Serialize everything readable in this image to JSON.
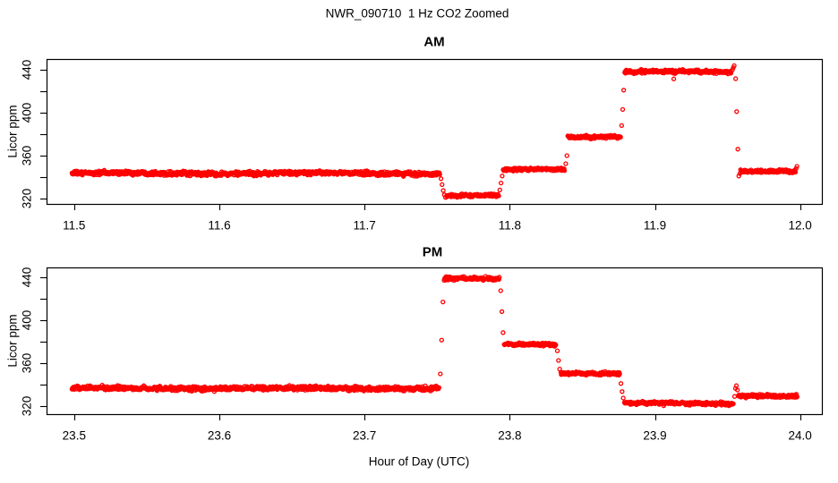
{
  "title": "NWR_090710  1 Hz CO2 Zoomed",
  "xlabel": "Hour of Day (UTC)",
  "point_color": "#FF0000",
  "axis_color": "#000000",
  "chart_data": [
    {
      "type": "scatter",
      "title": "AM",
      "ylabel": "Licor ppm",
      "marker": "open-circle",
      "grid": false,
      "legend": "none",
      "x_ticks": [
        11.5,
        11.6,
        11.7,
        11.8,
        11.9,
        12.0
      ],
      "x_tick_labels": [
        "11.5",
        "11.6",
        "11.7",
        "11.8",
        "11.9",
        "12.0"
      ],
      "y_major_ticks": [
        320,
        360,
        400,
        440
      ],
      "y_major_tick_labels": [
        "320",
        "360",
        "400",
        "440"
      ],
      "y_minor_ticks": [
        340,
        380,
        420
      ],
      "xlim": [
        11.481,
        12.015
      ],
      "ylim": [
        315,
        450
      ],
      "sample_interval_hours": 0.000277778,
      "segments": [
        {
          "x0": 11.4985,
          "x1": 11.752,
          "level": 343.5,
          "noise": 2.0
        },
        {
          "x0": 11.7566,
          "x1": 11.7925,
          "level": 322.5,
          "noise": 1.5
        },
        {
          "x0": 11.7955,
          "x1": 11.838,
          "level": 347.0,
          "noise": 1.5
        },
        {
          "x0": 11.84,
          "x1": 11.8765,
          "level": 377.0,
          "noise": 1.5
        },
        {
          "x0": 11.8792,
          "x1": 11.9528,
          "level": 438.0,
          "noise": 1.6
        },
        {
          "x0": 11.959,
          "x1": 11.9968,
          "level": 345.0,
          "noise": 1.6
        }
      ],
      "transition_points": [
        [
          11.7527,
          338.5
        ],
        [
          11.7534,
          333.0
        ],
        [
          11.7542,
          327.5
        ],
        [
          11.755,
          323.5
        ],
        [
          11.7558,
          321.0
        ],
        [
          11.7932,
          328.0
        ],
        [
          11.794,
          334.5
        ],
        [
          11.7948,
          341.0
        ],
        [
          11.8386,
          352.5
        ],
        [
          11.8394,
          360.0
        ],
        [
          11.8771,
          388.0
        ],
        [
          11.8778,
          403.0
        ],
        [
          11.8785,
          421.0
        ],
        [
          11.913,
          431.5
        ],
        [
          11.9534,
          440.0
        ],
        [
          11.954,
          442.0
        ],
        [
          11.9546,
          443.8
        ],
        [
          11.9556,
          431.7
        ],
        [
          11.9563,
          401.0
        ],
        [
          11.9571,
          366.0
        ],
        [
          11.9578,
          341.0
        ],
        [
          11.9585,
          343.2
        ],
        [
          11.9973,
          348.0
        ],
        [
          11.9978,
          350.0
        ]
      ]
    },
    {
      "type": "scatter",
      "title": "PM",
      "ylabel": "Licor ppm",
      "marker": "open-circle",
      "grid": false,
      "legend": "none",
      "x_ticks": [
        23.5,
        23.6,
        23.7,
        23.8,
        23.9,
        24.0
      ],
      "x_tick_labels": [
        "23.5",
        "23.6",
        "23.7",
        "23.8",
        "23.9",
        "24.0"
      ],
      "y_major_ticks": [
        320,
        360,
        400,
        440
      ],
      "y_major_tick_labels": [
        "320",
        "360",
        "400",
        "440"
      ],
      "y_minor_ticks": [
        340,
        380,
        420
      ],
      "xlim": [
        23.481,
        24.015
      ],
      "ylim": [
        312.5,
        449.2
      ],
      "sample_interval_hours": 0.000277778,
      "segments": [
        {
          "x0": 23.4985,
          "x1": 23.7515,
          "level": 336.5,
          "noise": 2.0
        },
        {
          "x0": 23.7548,
          "x1": 23.793,
          "level": 438.5,
          "noise": 1.6
        },
        {
          "x0": 23.7962,
          "x1": 23.832,
          "level": 377.0,
          "noise": 1.5
        },
        {
          "x0": 23.8352,
          "x1": 23.8758,
          "level": 350.0,
          "noise": 1.5
        },
        {
          "x0": 23.879,
          "x1": 23.9542,
          "level": 322.5,
          "noise": 1.5
        },
        {
          "x0": 23.9574,
          "x1": 23.998,
          "level": 329.0,
          "noise": 1.5
        }
      ],
      "transition_points": [
        [
          23.7522,
          350.0
        ],
        [
          23.7531,
          381.5
        ],
        [
          23.754,
          417.0
        ],
        [
          23.7938,
          427.5
        ],
        [
          23.7946,
          408.0
        ],
        [
          23.7954,
          388.5
        ],
        [
          23.8328,
          371.5
        ],
        [
          23.8336,
          362.5
        ],
        [
          23.8344,
          354.5
        ],
        [
          23.8766,
          341.0
        ],
        [
          23.8774,
          333.5
        ],
        [
          23.8782,
          327.5
        ],
        [
          23.906,
          320.3
        ],
        [
          23.9549,
          329.0
        ],
        [
          23.9555,
          336.5
        ],
        [
          23.9561,
          339.0
        ],
        [
          23.9568,
          335.0
        ]
      ]
    }
  ]
}
